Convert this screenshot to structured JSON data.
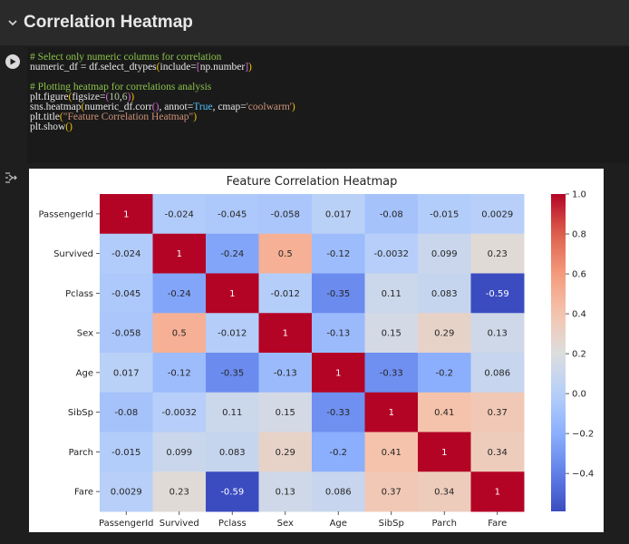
{
  "section": {
    "title": "Correlation Heatmap"
  },
  "code_cell": {
    "lines": [
      [
        {
          "t": "# Select only numeric columns for correlation",
          "c": "comment"
        }
      ],
      [
        {
          "t": "numeric_df = df.select_dtypes",
          "c": "default"
        },
        {
          "t": "(",
          "c": "bracket1"
        },
        {
          "t": "include=",
          "c": "default"
        },
        {
          "t": "[",
          "c": "bracket2"
        },
        {
          "t": "np.number",
          "c": "default"
        },
        {
          "t": "]",
          "c": "bracket2"
        },
        {
          "t": ")",
          "c": "bracket1"
        }
      ],
      [
        {
          "t": "",
          "c": "default"
        }
      ],
      [
        {
          "t": "# Plotting heatmap for correlations analysis",
          "c": "comment"
        }
      ],
      [
        {
          "t": "plt.figure",
          "c": "default"
        },
        {
          "t": "(",
          "c": "bracket1"
        },
        {
          "t": "figsize=",
          "c": "default"
        },
        {
          "t": "(",
          "c": "bracket2"
        },
        {
          "t": "10",
          "c": "number"
        },
        {
          "t": ",",
          "c": "default"
        },
        {
          "t": "6",
          "c": "number"
        },
        {
          "t": ")",
          "c": "bracket2"
        },
        {
          "t": ")",
          "c": "bracket1"
        }
      ],
      [
        {
          "t": "sns.heatmap",
          "c": "default"
        },
        {
          "t": "(",
          "c": "bracket1"
        },
        {
          "t": "numeric_df.corr",
          "c": "default"
        },
        {
          "t": "()",
          "c": "bracket2"
        },
        {
          "t": ", annot=",
          "c": "default"
        },
        {
          "t": "True",
          "c": "keyword"
        },
        {
          "t": ", cmap=",
          "c": "default"
        },
        {
          "t": "'coolwarm'",
          "c": "string"
        },
        {
          "t": ")",
          "c": "bracket1"
        }
      ],
      [
        {
          "t": "plt.title",
          "c": "default"
        },
        {
          "t": "(",
          "c": "bracket1"
        },
        {
          "t": "\"Feature Correlation Heatmap\"",
          "c": "string"
        },
        {
          "t": ")",
          "c": "bracket1"
        }
      ],
      [
        {
          "t": "plt.show",
          "c": "default"
        },
        {
          "t": "()",
          "c": "bracket1"
        }
      ]
    ]
  },
  "chart_data": {
    "type": "heatmap",
    "title": "Feature Correlation Heatmap",
    "xlabels": [
      "PassengerId",
      "Survived",
      "Pclass",
      "Sex",
      "Age",
      "SibSp",
      "Parch",
      "Fare"
    ],
    "ylabels": [
      "PassengerId",
      "Survived",
      "Pclass",
      "Sex",
      "Age",
      "SibSp",
      "Parch",
      "Fare"
    ],
    "values": [
      [
        1,
        -0.024,
        -0.045,
        -0.058,
        0.017,
        -0.08,
        -0.015,
        0.0029
      ],
      [
        -0.024,
        1,
        -0.24,
        0.5,
        -0.12,
        -0.0032,
        0.099,
        0.23
      ],
      [
        -0.045,
        -0.24,
        1,
        -0.012,
        -0.35,
        0.11,
        0.083,
        -0.59
      ],
      [
        -0.058,
        0.5,
        -0.012,
        1,
        -0.13,
        0.15,
        0.29,
        0.13
      ],
      [
        0.017,
        -0.12,
        -0.35,
        -0.13,
        1,
        -0.33,
        -0.2,
        0.086
      ],
      [
        -0.08,
        -0.0032,
        0.11,
        0.15,
        -0.33,
        1,
        0.41,
        0.37
      ],
      [
        -0.015,
        0.099,
        0.083,
        0.29,
        -0.2,
        0.41,
        1,
        0.34
      ],
      [
        0.0029,
        0.23,
        -0.59,
        0.13,
        0.086,
        0.37,
        0.34,
        1
      ]
    ],
    "annotations": [
      [
        "1",
        "-0.024",
        "-0.045",
        "-0.058",
        "0.017",
        "-0.08",
        "-0.015",
        "0.0029"
      ],
      [
        "-0.024",
        "1",
        "-0.24",
        "0.5",
        "-0.12",
        "-0.0032",
        "0.099",
        "0.23"
      ],
      [
        "-0.045",
        "-0.24",
        "1",
        "-0.012",
        "-0.35",
        "0.11",
        "0.083",
        "-0.59"
      ],
      [
        "-0.058",
        "0.5",
        "-0.012",
        "1",
        "-0.13",
        "0.15",
        "0.29",
        "0.13"
      ],
      [
        "0.017",
        "-0.12",
        "-0.35",
        "-0.13",
        "1",
        "-0.33",
        "-0.2",
        "0.086"
      ],
      [
        "-0.08",
        "-0.0032",
        "0.11",
        "0.15",
        "-0.33",
        "1",
        "0.41",
        "0.37"
      ],
      [
        "-0.015",
        "0.099",
        "0.083",
        "0.29",
        "-0.2",
        "0.41",
        "1",
        "0.34"
      ],
      [
        "0.0029",
        "0.23",
        "-0.59",
        "0.13",
        "0.086",
        "0.37",
        "0.34",
        "1"
      ]
    ],
    "colormap": "coolwarm",
    "vmin": -0.59,
    "vmax": 1.0,
    "colorbar_ticks": [
      {
        "value": 1.0,
        "label": "1.0"
      },
      {
        "value": 0.8,
        "label": "0.8"
      },
      {
        "value": 0.6,
        "label": "0.6"
      },
      {
        "value": 0.4,
        "label": "0.4"
      },
      {
        "value": 0.2,
        "label": "0.2"
      },
      {
        "value": 0.0,
        "label": "0.0"
      },
      {
        "value": -0.2,
        "label": "−0.2"
      },
      {
        "value": -0.4,
        "label": "−0.4"
      }
    ]
  }
}
